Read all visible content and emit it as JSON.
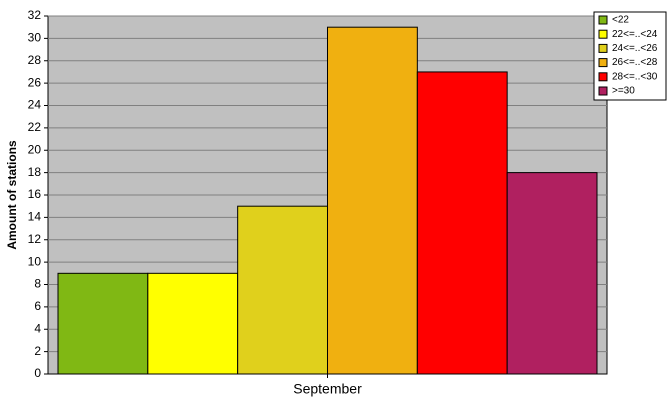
{
  "chart_data": {
    "type": "bar",
    "y_label": "Amount of stations",
    "categories": [
      "September"
    ],
    "series": [
      {
        "name": "<22",
        "color": "#80b814",
        "values": [
          9
        ]
      },
      {
        "name": "22<=..<24",
        "color": "#ffff00",
        "values": [
          9
        ]
      },
      {
        "name": "24<=..<26",
        "color": "#e0d01c",
        "values": [
          15
        ]
      },
      {
        "name": "26<=..<28",
        "color": "#f0b010",
        "values": [
          31
        ]
      },
      {
        "name": "28<=..<30",
        "color": "#ff0000",
        "values": [
          27
        ]
      },
      {
        "name": ">=30",
        "color": "#b02060",
        "values": [
          18
        ]
      }
    ],
    "ylim": [
      0,
      32
    ],
    "yticks": [
      0,
      2,
      4,
      6,
      8,
      10,
      12,
      14,
      16,
      18,
      20,
      22,
      24,
      26,
      28,
      30,
      32
    ],
    "grid": true,
    "legend": "top-right",
    "background": "#c0c0c0"
  }
}
